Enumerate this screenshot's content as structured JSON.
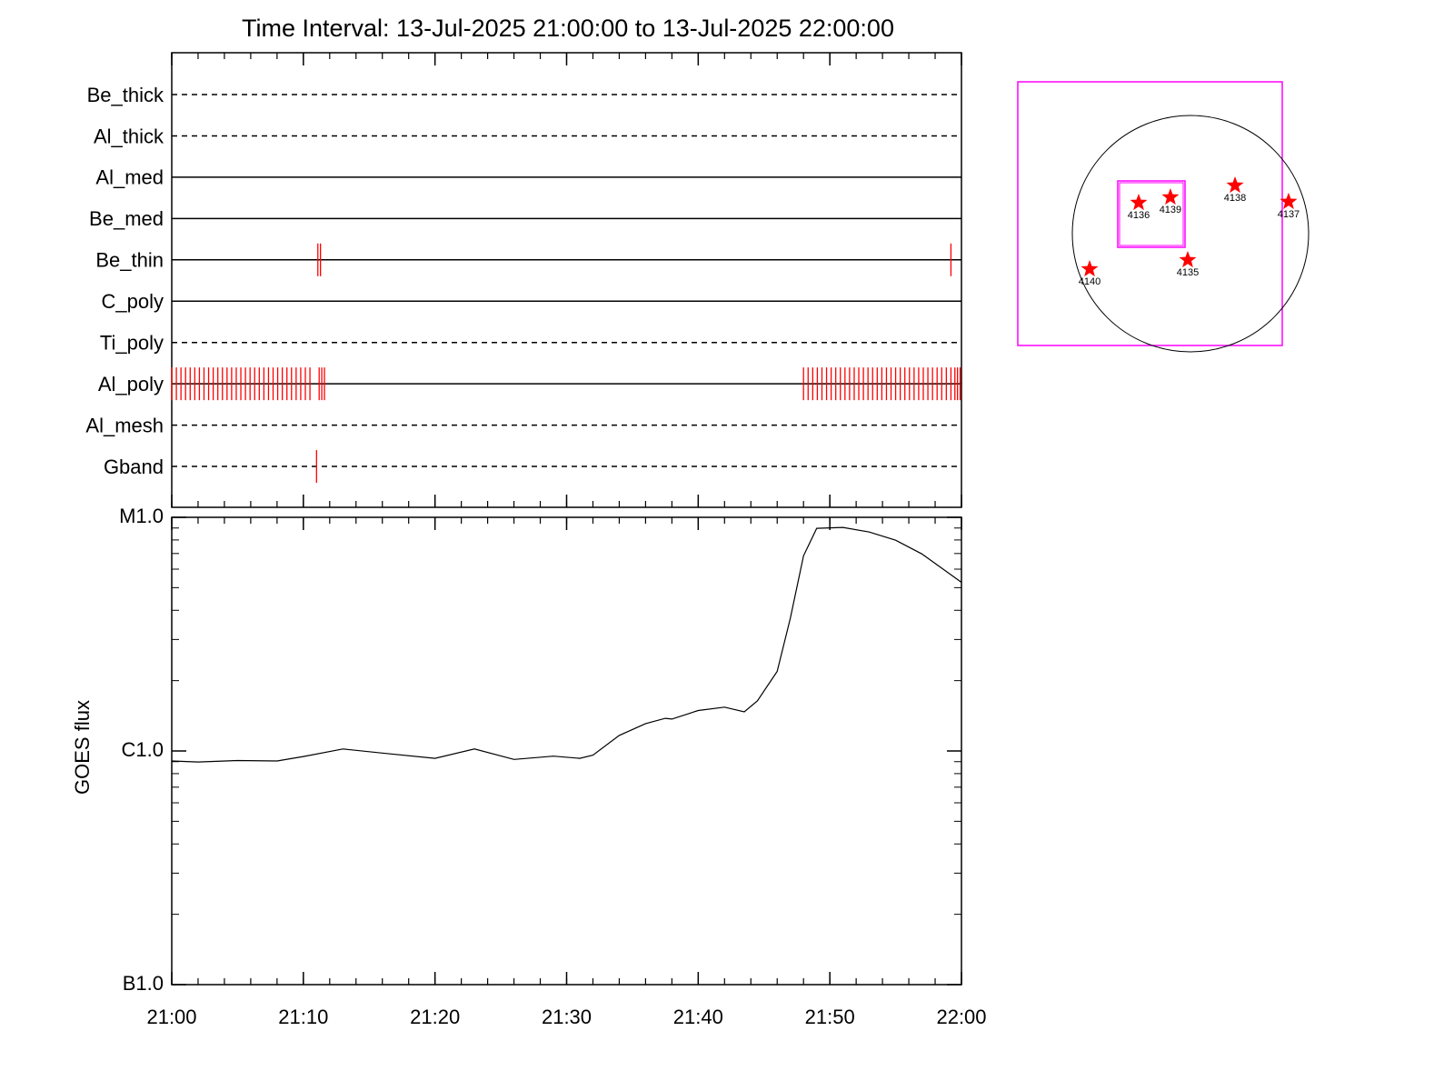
{
  "title": "Time Interval: 13-Jul-2025 21:00:00 to 13-Jul-2025 22:00:00",
  "chart_data": [
    {
      "type": "timeline",
      "event_color": "#ff0000",
      "rows": [
        {
          "name": "Be_thick",
          "line": "dashed",
          "events": []
        },
        {
          "name": "Al_thick",
          "line": "dashed",
          "events": []
        },
        {
          "name": "Al_med",
          "line": "solid",
          "events": []
        },
        {
          "name": "Be_med",
          "line": "solid",
          "events": []
        },
        {
          "name": "Be_thin",
          "line": "solid",
          "events": [
            11.1,
            11.3,
            59.2
          ]
        },
        {
          "name": "C_poly",
          "line": "solid",
          "events": []
        },
        {
          "name": "Ti_poly",
          "line": "dashed",
          "events": []
        },
        {
          "name": "Al_poly",
          "line": "solid",
          "events": [
            0,
            0.35,
            0.7,
            1.05,
            1.4,
            1.75,
            2.1,
            2.45,
            2.8,
            3.15,
            3.5,
            3.85,
            4.2,
            4.55,
            4.9,
            5.25,
            5.6,
            5.95,
            6.3,
            6.65,
            7.0,
            7.35,
            7.7,
            8.05,
            8.4,
            8.75,
            9.1,
            9.45,
            9.8,
            10.15,
            10.5,
            11.2,
            11.4,
            11.6,
            48.0,
            48.35,
            48.7,
            49.05,
            49.4,
            49.75,
            50.1,
            50.45,
            50.8,
            51.15,
            51.5,
            51.85,
            52.2,
            52.55,
            52.9,
            53.25,
            53.6,
            53.95,
            54.3,
            54.65,
            55.0,
            55.35,
            55.7,
            56.05,
            56.4,
            56.75,
            57.1,
            57.45,
            57.8,
            58.15,
            58.5,
            58.85,
            59.2,
            59.5,
            59.7,
            59.9
          ]
        },
        {
          "name": "Al_mesh",
          "line": "dashed",
          "events": []
        },
        {
          "name": "Gband",
          "line": "dashed",
          "events": [
            11.0
          ]
        }
      ]
    },
    {
      "type": "line",
      "ylabel": "GOES flux",
      "color": "#000000",
      "log_y": true,
      "x": [
        0,
        2,
        5,
        8,
        10,
        13,
        16,
        20,
        23,
        26,
        29,
        31,
        32,
        34,
        36,
        37.5,
        38,
        40,
        42,
        43.5,
        44.5,
        46,
        47,
        48,
        49,
        51,
        53,
        55,
        57,
        60
      ],
      "values": [
        9.06e-07,
        8.97e-07,
        9.1e-07,
        9.06e-07,
        9.47e-07,
        1.02e-06,
        9.8e-07,
        9.3e-07,
        1.02e-06,
        9.2e-07,
        9.5e-07,
        9.3e-07,
        9.6e-07,
        1.166e-06,
        1.31e-06,
        1.38e-06,
        1.37e-06,
        1.49e-06,
        1.54e-06,
        1.47e-06,
        1.64e-06,
        2.19e-06,
        3.7e-06,
        6.84e-06,
        8.97e-06,
        9.05e-06,
        8.65e-06,
        7.98e-06,
        6.97e-06,
        5.27e-06
      ],
      "xlim": [
        0,
        60
      ],
      "xticks": [
        {
          "value": 0,
          "label": "21:00"
        },
        {
          "value": 10,
          "label": "21:10"
        },
        {
          "value": 20,
          "label": "21:20"
        },
        {
          "value": 30,
          "label": "21:30"
        },
        {
          "value": 40,
          "label": "21:40"
        },
        {
          "value": 50,
          "label": "21:50"
        },
        {
          "value": 60,
          "label": "22:00"
        }
      ],
      "ylim": [
        1e-07,
        1e-05
      ],
      "yticks": [
        {
          "value": 1e-07,
          "label": "B1.0"
        },
        {
          "value": 1e-06,
          "label": "C1.0"
        },
        {
          "value": 1e-05,
          "label": "M1.0"
        }
      ]
    },
    {
      "type": "map",
      "color": "#ff0000",
      "xlim": [
        -1500,
        1500
      ],
      "ylim": [
        -1500,
        1500
      ],
      "regions": [
        {
          "label": "4136",
          "x": -416,
          "y": 248
        },
        {
          "label": "4139",
          "x": -161,
          "y": 292
        },
        {
          "label": "4138",
          "x": 358,
          "y": 387
        },
        {
          "label": "4137",
          "x": 788,
          "y": 256
        },
        {
          "label": "4135",
          "x": -22,
          "y": -212
        },
        {
          "label": "4140",
          "x": -810,
          "y": -285
        }
      ]
    }
  ]
}
